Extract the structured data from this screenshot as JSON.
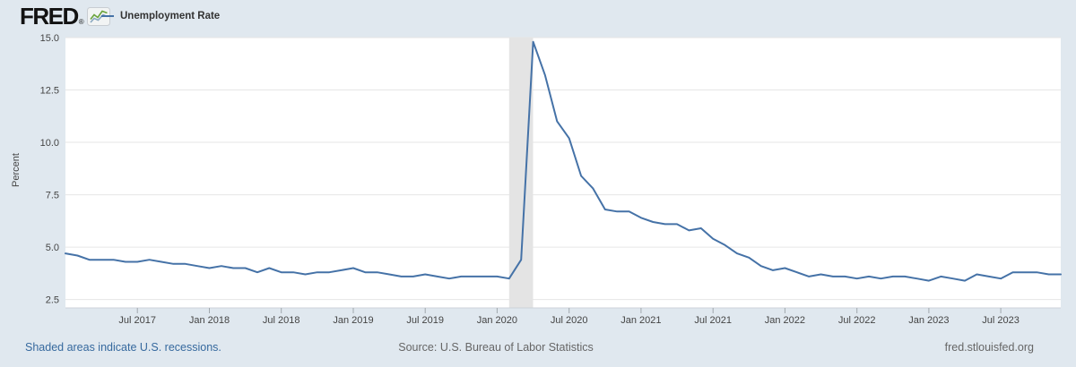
{
  "header": {
    "logo": "FRED",
    "logo_reg": "®",
    "logo_icon": "line-chart-icon",
    "legend": {
      "label": "Unemployment Rate",
      "swatch_color": "#4572a7"
    }
  },
  "chart_data": {
    "type": "line",
    "title": "Unemployment Rate",
    "ylabel": "Percent",
    "xlabel": "",
    "grid": true,
    "legend_position": "top-left",
    "ylim": [
      2.1,
      15.0
    ],
    "yticks": [
      "2.5",
      "5.0",
      "7.5",
      "10.0",
      "12.5",
      "15.0"
    ],
    "xticks": [
      "Jul 2017",
      "Jan 2018",
      "Jul 2018",
      "Jan 2019",
      "Jul 2019",
      "Jan 2020",
      "Jul 2020",
      "Jan 2021",
      "Jul 2021",
      "Jan 2022",
      "Jul 2022",
      "Jan 2023",
      "Jul 2023"
    ],
    "x_start": "2017-01",
    "x_end": "2023-12",
    "series": [
      {
        "name": "Unemployment Rate",
        "color": "#4572a7",
        "values": [
          4.7,
          4.6,
          4.4,
          4.4,
          4.4,
          4.3,
          4.3,
          4.4,
          4.3,
          4.2,
          4.2,
          4.1,
          4.0,
          4.1,
          4.0,
          4.0,
          3.8,
          4.0,
          3.8,
          3.8,
          3.7,
          3.8,
          3.8,
          3.9,
          4.0,
          3.8,
          3.8,
          3.7,
          3.6,
          3.6,
          3.7,
          3.6,
          3.5,
          3.6,
          3.6,
          3.6,
          3.6,
          3.5,
          4.4,
          14.8,
          13.2,
          11.0,
          10.2,
          8.4,
          7.8,
          6.8,
          6.7,
          6.7,
          6.4,
          6.2,
          6.1,
          6.1,
          5.8,
          5.9,
          5.4,
          5.1,
          4.7,
          4.5,
          4.1,
          3.9,
          4.0,
          3.8,
          3.6,
          3.7,
          3.6,
          3.6,
          3.5,
          3.6,
          3.5,
          3.6,
          3.6,
          3.5,
          3.4,
          3.6,
          3.5,
          3.4,
          3.7,
          3.6,
          3.5,
          3.8,
          3.8,
          3.8,
          3.7,
          3.7
        ]
      }
    ],
    "recession_bands": [
      {
        "from": "2020-02",
        "to": "2020-04"
      }
    ],
    "colors": {
      "background": "#e0e8ef",
      "plot_background": "#ffffff",
      "gridline": "#e6e6e6",
      "recession": "#e4e4e4",
      "line": "#4572a7",
      "axis_text": "#444444",
      "tick": "#a0a7ad",
      "axis_line": "#ccd2d9"
    }
  },
  "footer": {
    "recession_note": "Shaded areas indicate U.S. recessions.",
    "source": "Source: U.S. Bureau of Labor Statistics",
    "site": "fred.stlouisfed.org"
  }
}
